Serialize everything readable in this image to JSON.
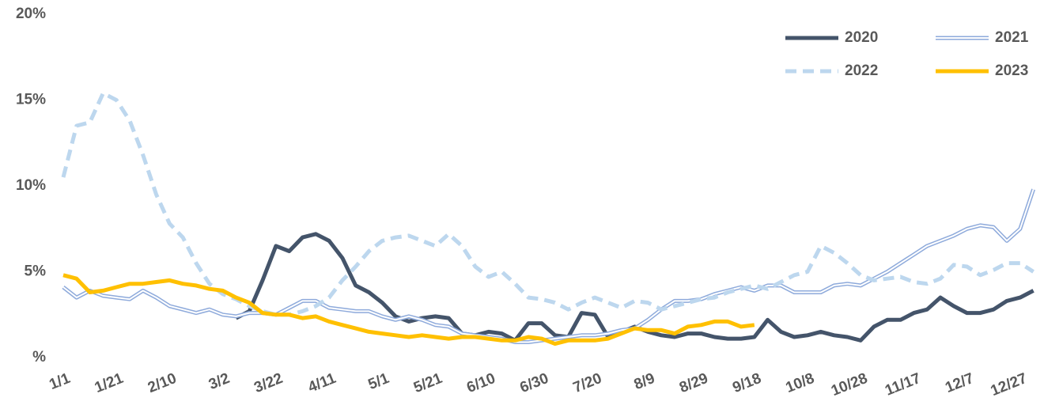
{
  "chart_data": {
    "type": "line",
    "x": [
      0,
      5,
      10,
      15,
      20,
      25,
      30,
      35,
      40,
      45,
      50,
      55,
      60,
      65,
      70,
      75,
      80,
      85,
      90,
      95,
      100,
      105,
      110,
      115,
      120,
      125,
      130,
      135,
      140,
      145,
      150,
      155,
      160,
      165,
      170,
      175,
      180,
      185,
      190,
      195,
      200,
      205,
      210,
      215,
      220,
      225,
      230,
      235,
      240,
      245,
      250,
      255,
      260,
      265,
      270,
      275,
      280,
      285,
      290,
      295,
      300,
      305,
      310,
      315,
      320,
      325,
      330,
      335,
      340,
      345,
      350,
      355,
      360,
      365
    ],
    "xlim": [
      0,
      366
    ],
    "xticks": [
      {
        "value": 0,
        "label": "1/1"
      },
      {
        "value": 20,
        "label": "1/21"
      },
      {
        "value": 40,
        "label": "2/10"
      },
      {
        "value": 60,
        "label": "3/2"
      },
      {
        "value": 80,
        "label": "3/22"
      },
      {
        "value": 100,
        "label": "4/11"
      },
      {
        "value": 120,
        "label": "5/1"
      },
      {
        "value": 140,
        "label": "5/21"
      },
      {
        "value": 160,
        "label": "6/10"
      },
      {
        "value": 180,
        "label": "6/30"
      },
      {
        "value": 200,
        "label": "7/20"
      },
      {
        "value": 220,
        "label": "8/9"
      },
      {
        "value": 240,
        "label": "8/29"
      },
      {
        "value": 260,
        "label": "9/18"
      },
      {
        "value": 280,
        "label": "10/8"
      },
      {
        "value": 300,
        "label": "10/28"
      },
      {
        "value": 320,
        "label": "11/17"
      },
      {
        "value": 340,
        "label": "12/7"
      },
      {
        "value": 360,
        "label": "12/27"
      }
    ],
    "ylim": [
      0,
      20
    ],
    "yticks": [
      {
        "value": 0,
        "label": "%"
      },
      {
        "value": 5,
        "label": "5%"
      },
      {
        "value": 10,
        "label": "10%"
      },
      {
        "value": 15,
        "label": "15%"
      },
      {
        "value": 20,
        "label": "20%"
      }
    ],
    "grid": false,
    "legend": "top-right",
    "series": [
      {
        "name": "2020",
        "color": "#44546a",
        "line_style": "solid",
        "values": [
          null,
          null,
          null,
          null,
          null,
          null,
          null,
          null,
          null,
          null,
          null,
          null,
          null,
          2.3,
          2.7,
          4.5,
          6.5,
          6.2,
          7.0,
          7.2,
          6.8,
          5.8,
          4.2,
          3.8,
          3.2,
          2.4,
          2.1,
          2.3,
          2.4,
          2.3,
          1.4,
          1.3,
          1.5,
          1.4,
          1.0,
          2.0,
          2.0,
          1.3,
          1.2,
          2.6,
          2.5,
          1.2,
          1.5,
          1.8,
          1.5,
          1.3,
          1.2,
          1.4,
          1.4,
          1.2,
          1.1,
          1.1,
          1.2,
          2.2,
          1.5,
          1.2,
          1.3,
          1.5,
          1.3,
          1.2,
          1.0,
          1.8,
          2.2,
          2.2,
          2.6,
          2.8,
          3.5,
          3.0,
          2.6,
          2.6,
          2.8,
          3.3,
          3.5,
          3.9
        ]
      },
      {
        "name": "2021",
        "color": "#8eaadb",
        "line_style": "double",
        "values": [
          4.1,
          3.5,
          3.9,
          3.6,
          3.5,
          3.4,
          3.9,
          3.5,
          3.0,
          2.8,
          2.6,
          2.8,
          2.5,
          2.4,
          2.6,
          2.6,
          2.5,
          2.9,
          3.3,
          3.3,
          2.9,
          2.8,
          2.7,
          2.7,
          2.4,
          2.2,
          2.4,
          2.2,
          1.9,
          1.8,
          1.4,
          1.3,
          1.2,
          1.1,
          0.9,
          0.9,
          1.0,
          1.1,
          1.2,
          1.3,
          1.3,
          1.4,
          1.6,
          1.7,
          2.2,
          2.8,
          3.3,
          3.3,
          3.4,
          3.7,
          3.9,
          4.1,
          3.9,
          4.2,
          4.2,
          3.8,
          3.8,
          3.8,
          4.2,
          4.3,
          4.2,
          4.6,
          5.0,
          5.5,
          6.0,
          6.5,
          6.8,
          7.1,
          7.5,
          7.7,
          7.6,
          6.8,
          7.5,
          9.8
        ]
      },
      {
        "name": "2022",
        "color": "#bdd7ee",
        "line_style": "dashed",
        "values": [
          10.5,
          13.5,
          13.7,
          15.4,
          15.0,
          13.8,
          11.8,
          9.5,
          7.8,
          7.0,
          5.5,
          4.3,
          3.7,
          3.4,
          3.0,
          2.7,
          2.5,
          2.5,
          2.7,
          3.0,
          3.5,
          4.5,
          5.3,
          6.2,
          6.8,
          7.0,
          7.1,
          6.8,
          6.5,
          7.2,
          6.5,
          5.3,
          4.7,
          5.0,
          4.3,
          3.5,
          3.4,
          3.2,
          2.8,
          3.2,
          3.5,
          3.2,
          2.9,
          3.3,
          3.2,
          2.8,
          3.0,
          3.2,
          3.4,
          3.5,
          3.8,
          4.0,
          4.2,
          4.0,
          4.4,
          4.8,
          5.0,
          6.5,
          6.1,
          5.5,
          4.8,
          4.5,
          4.6,
          4.7,
          4.4,
          4.3,
          4.6,
          5.4,
          5.3,
          4.8,
          5.1,
          5.5,
          5.5,
          5.0
        ]
      },
      {
        "name": "2023",
        "color": "#ffc000",
        "line_style": "solid",
        "values": [
          4.8,
          4.6,
          3.8,
          3.9,
          4.1,
          4.3,
          4.3,
          4.4,
          4.5,
          4.3,
          4.2,
          4.0,
          3.9,
          3.5,
          3.2,
          2.6,
          2.5,
          2.5,
          2.3,
          2.4,
          2.1,
          1.9,
          1.7,
          1.5,
          1.4,
          1.3,
          1.2,
          1.3,
          1.2,
          1.1,
          1.2,
          1.2,
          1.1,
          1.0,
          1.0,
          1.2,
          1.1,
          0.8,
          1.0,
          1.0,
          1.0,
          1.1,
          1.4,
          1.7,
          1.6,
          1.6,
          1.4,
          1.8,
          1.9,
          2.1,
          2.1,
          1.8,
          1.9,
          null,
          null,
          null,
          null,
          null,
          null,
          null,
          null,
          null,
          null,
          null,
          null,
          null,
          null,
          null,
          null,
          null,
          null,
          null,
          null,
          null
        ]
      }
    ]
  }
}
